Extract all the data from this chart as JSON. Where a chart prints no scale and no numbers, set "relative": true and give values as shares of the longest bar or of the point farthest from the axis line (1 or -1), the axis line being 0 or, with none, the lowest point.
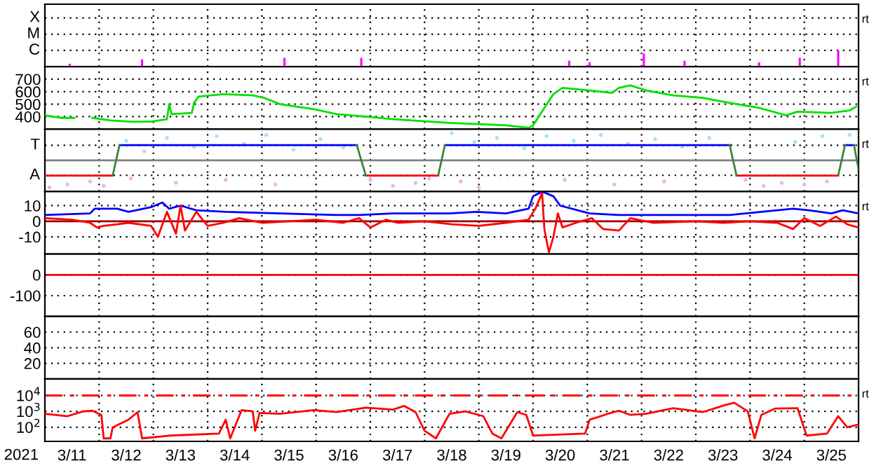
{
  "chart_data": [
    {
      "type": "bar",
      "relative": true,
      "xlim": [
        "2021-03-11",
        "2021-03-26"
      ],
      "grid": true,
      "tick_labels": false,
      "annotations": [
        "rt",
        "X",
        "M",
        "C"
      ],
      "xticks": [
        {
          "value": "2021-03-12",
          "label": null
        },
        {
          "value": "2021-03-13",
          "label": null
        },
        {
          "value": "2021-03-14",
          "label": null
        },
        {
          "value": "2021-03-15",
          "label": null
        },
        {
          "value": "2021-03-16",
          "label": null
        },
        {
          "value": "2021-03-17",
          "label": null
        },
        {
          "value": "2021-03-18",
          "label": null
        },
        {
          "value": "2021-03-19",
          "label": null
        },
        {
          "value": "2021-03-20",
          "label": null
        },
        {
          "value": "2021-03-21",
          "label": null
        },
        {
          "value": "2021-03-22",
          "label": null
        },
        {
          "value": "2021-03-23",
          "label": null
        },
        {
          "value": "2021-03-24",
          "label": null
        },
        {
          "value": "2021-03-25",
          "label": null
        }
      ],
      "series": [
        {
          "color": "#ff00ff",
          "x": [
            "2021-03-11T11:00",
            "2021-03-12T19:00",
            "2021-03-15T10:00",
            "2021-03-16T20:00",
            "2021-03-20T16:00",
            "2021-03-21T01:00",
            "2021-03-22T01:00",
            "2021-03-22T19:00",
            "2021-03-24T04:00",
            "2021-03-24T22:00",
            "2021-03-25T15:00"
          ],
          "values": [
            0.18,
            0.45,
            0.55,
            0.55,
            0.36,
            0.27,
            0.8,
            0.36,
            0.27,
            0.55,
            1
          ]
        }
      ]
    },
    {
      "type": "line",
      "xlim": [
        "2021-03-11",
        "2021-03-26"
      ],
      "ylim": [
        300,
        800
      ],
      "yticks": [
        400,
        500,
        600,
        700
      ],
      "grid": true,
      "tick_labels": "y",
      "annotations": [
        "rt"
      ],
      "xticks": [
        {
          "value": "2021-03-12",
          "label": null
        },
        {
          "value": "2021-03-13",
          "label": null
        },
        {
          "value": "2021-03-14",
          "label": null
        },
        {
          "value": "2021-03-15",
          "label": null
        },
        {
          "value": "2021-03-16",
          "label": null
        },
        {
          "value": "2021-03-17",
          "label": null
        },
        {
          "value": "2021-03-18",
          "label": null
        },
        {
          "value": "2021-03-19",
          "label": null
        },
        {
          "value": "2021-03-20",
          "label": null
        },
        {
          "value": "2021-03-21",
          "label": null
        },
        {
          "value": "2021-03-22",
          "label": null
        },
        {
          "value": "2021-03-23",
          "label": null
        },
        {
          "value": "2021-03-24",
          "label": null
        },
        {
          "value": "2021-03-25",
          "label": null
        }
      ],
      "series": [
        {
          "color": "#00e000",
          "x": [
            "2021-03-11T00:00",
            "2021-03-11T07:00",
            "2021-03-11T13:00",
            "2021-03-11T17:00",
            "2021-03-11T21:00",
            "2021-03-12T05:00",
            "2021-03-12T14:00",
            "2021-03-12T23:00",
            "2021-03-13T06:00",
            "2021-03-13T07:00",
            "2021-03-13T08:00",
            "2021-03-13T17:00",
            "2021-03-13T18:00",
            "2021-03-13T20:00",
            "2021-03-14T07:00",
            "2021-03-14T20:00",
            "2021-03-15T01:00",
            "2021-03-15T08:00",
            "2021-03-15T23:00",
            "2021-03-16T09:00",
            "2021-03-16T22:00",
            "2021-03-17T10:00",
            "2021-03-18T11:00",
            "2021-03-19T12:00",
            "2021-03-19T22:00",
            "2021-03-20T00:00",
            "2021-03-20T05:00",
            "2021-03-20T09:00",
            "2021-03-20T13:00",
            "2021-03-21T01:00",
            "2021-03-21T11:00",
            "2021-03-21T14:00",
            "2021-03-21T19:00",
            "2021-03-22T02:00",
            "2021-03-22T14:00",
            "2021-03-23T03:00",
            "2021-03-23T15:00",
            "2021-03-24T04:00",
            "2021-03-24T16:00",
            "2021-03-24T21:00",
            "2021-03-25T12:00",
            "2021-03-25T20:00",
            "2021-03-25T23:00"
          ],
          "values": [
            410,
            390,
            390,
            null,
            390,
            370,
            360,
            360,
            380,
            500,
            420,
            430,
            510,
            560,
            580,
            570,
            550,
            500,
            460,
            420,
            400,
            380,
            350,
            330,
            310,
            330,
            470,
            580,
            630,
            610,
            590,
            630,
            650,
            610,
            570,
            550,
            510,
            470,
            410,
            440,
            430,
            450,
            480
          ]
        }
      ]
    },
    {
      "type": "line",
      "relative": true,
      "xlim": [
        "2021-03-11",
        "2021-03-26"
      ],
      "grid": true,
      "tick_labels": false,
      "annotations": [
        "rt",
        "T",
        "A"
      ],
      "ref_lines": [
        {
          "axis": "y",
          "value": 0,
          "color": "#808080"
        }
      ],
      "xticks": [
        {
          "value": "2021-03-12",
          "label": null
        },
        {
          "value": "2021-03-13",
          "label": null
        },
        {
          "value": "2021-03-14",
          "label": null
        },
        {
          "value": "2021-03-15",
          "label": null
        },
        {
          "value": "2021-03-16",
          "label": null
        },
        {
          "value": "2021-03-17",
          "label": null
        },
        {
          "value": "2021-03-18",
          "label": null
        },
        {
          "value": "2021-03-19",
          "label": null
        },
        {
          "value": "2021-03-20",
          "label": null
        },
        {
          "value": "2021-03-21",
          "label": null
        },
        {
          "value": "2021-03-22",
          "label": null
        },
        {
          "value": "2021-03-23",
          "label": null
        },
        {
          "value": "2021-03-24",
          "label": null
        },
        {
          "value": "2021-03-25",
          "label": null
        }
      ],
      "series": [
        {
          "type": "scatter",
          "color": "#a8e0f8",
          "x": [
            "2021-03-12T12:00",
            "2021-03-12T20:00",
            "2021-03-13T06:00",
            "2021-03-13T18:00",
            "2021-03-14T04:00",
            "2021-03-14T16:00",
            "2021-03-15T02:00",
            "2021-03-15T14:00",
            "2021-03-16T02:00",
            "2021-03-16T12:00",
            "2021-03-18T12:00",
            "2021-03-18T22:00",
            "2021-03-19T08:00",
            "2021-03-19T20:00",
            "2021-03-20T06:00",
            "2021-03-20T18:00",
            "2021-03-21T06:00",
            "2021-03-21T18:00",
            "2021-03-22T06:00",
            "2021-03-22T18:00",
            "2021-03-23T06:00",
            "2021-03-24T20:00",
            "2021-03-25T08:00",
            "2021-03-25T20:00"
          ],
          "values": [
            0.72,
            0.33,
            0.83,
            0.5,
            0.89,
            0.61,
            0.94,
            0.39,
            0.78,
            0.47,
            1,
            0.67,
            0.83,
            0.44,
            0.89,
            0.72,
            0.94,
            0.61,
            0.78,
            0.5,
            0.83,
            0.67,
            0.89,
            0.94
          ]
        },
        {
          "type": "scatter",
          "color": "#f0b0f0",
          "x": [
            "2021-03-11T02:00",
            "2021-03-11T10:00",
            "2021-03-11T20:00",
            "2021-03-12T02:00",
            "2021-03-12T14:00",
            "2021-03-13T10:00",
            "2021-03-14T08:00",
            "2021-03-15T06:00",
            "2021-03-17T00:00",
            "2021-03-17T10:00",
            "2021-03-17T20:00",
            "2021-03-18T02:00",
            "2021-03-18T16:00",
            "2021-03-19T00:00",
            "2021-03-20T14:00",
            "2021-03-21T12:00",
            "2021-03-22T10:00",
            "2021-03-23T22:00",
            "2021-03-24T06:00",
            "2021-03-24T14:00",
            "2021-03-25T00:00",
            "2021-03-25T10:00"
          ],
          "values": [
            -1,
            -0.89,
            -0.78,
            -0.94,
            -0.67,
            -0.83,
            -0.72,
            -0.89,
            -0.72,
            -0.94,
            -0.83,
            -0.67,
            -0.78,
            -1,
            -0.72,
            -0.89,
            -0.78,
            -0.72,
            -0.94,
            -0.83,
            -0.89,
            -0.78
          ]
        },
        {
          "color": "#ff0000",
          "x": [
            "2021-03-11T00:00",
            "2021-03-12T06:00",
            "2021-03-12T07:00",
            "2021-03-16T22:00",
            "2021-03-18T06:00",
            "2021-03-18T07:00",
            "2021-03-23T18:00",
            "2021-03-25T15:00"
          ],
          "values": [
            -0.56,
            -0.56,
            null,
            -0.56,
            -0.56,
            null,
            -0.56,
            -0.56
          ]
        },
        {
          "color": "#0000ff",
          "x": [
            "2021-03-12T09:00",
            "2021-03-16T18:00",
            "2021-03-16T19:00",
            "2021-03-18T09:00",
            "2021-03-23T15:00",
            "2021-03-23T16:00",
            "2021-03-25T18:00",
            "2021-03-25T22:00"
          ],
          "values": [
            0.56,
            0.56,
            null,
            0.56,
            0.56,
            null,
            0.56,
            0.56
          ]
        },
        {
          "color": "#408040",
          "x": [
            "2021-03-12T06:00",
            "2021-03-12T09:00",
            "2021-03-12T10:00",
            "2021-03-16T18:00",
            "2021-03-16T22:00",
            "2021-03-16T23:00",
            "2021-03-18T06:00",
            "2021-03-18T09:00",
            "2021-03-18T10:00",
            "2021-03-23T15:00",
            "2021-03-23T18:00",
            "2021-03-23T19:00",
            "2021-03-25T15:00",
            "2021-03-25T18:00",
            "2021-03-25T19:00",
            "2021-03-25T22:00",
            "2021-03-26T00:00"
          ],
          "values": [
            -0.56,
            0.56,
            null,
            0.56,
            -0.56,
            null,
            -0.56,
            0.56,
            null,
            0.56,
            -0.56,
            null,
            -0.56,
            0.56,
            null,
            0.56,
            -0.33
          ]
        }
      ]
    },
    {
      "type": "line",
      "xlim": [
        "2021-03-11",
        "2021-03-26"
      ],
      "ylim": [
        -21,
        19
      ],
      "yticks": [
        -10,
        0,
        10
      ],
      "grid": true,
      "tick_labels": "y",
      "annotations": [
        "rt"
      ],
      "ref_lines": [
        {
          "axis": "y",
          "value": 0,
          "color": "#a00000"
        }
      ],
      "xticks": [
        {
          "value": "2021-03-12",
          "label": null
        },
        {
          "value": "2021-03-13",
          "label": null
        },
        {
          "value": "2021-03-14",
          "label": null
        },
        {
          "value": "2021-03-15",
          "label": null
        },
        {
          "value": "2021-03-16",
          "label": null
        },
        {
          "value": "2021-03-17",
          "label": null
        },
        {
          "value": "2021-03-18",
          "label": null
        },
        {
          "value": "2021-03-19",
          "label": null
        },
        {
          "value": "2021-03-20",
          "label": null
        },
        {
          "value": "2021-03-21",
          "label": null
        },
        {
          "value": "2021-03-22",
          "label": null
        },
        {
          "value": "2021-03-23",
          "label": null
        },
        {
          "value": "2021-03-24",
          "label": null
        },
        {
          "value": "2021-03-25",
          "label": null
        }
      ],
      "series": [
        {
          "color": "#0000ff",
          "x": [
            "2021-03-11T00:00",
            "2021-03-11T20:00",
            "2021-03-11T22:00",
            "2021-03-12T08:00",
            "2021-03-12T13:00",
            "2021-03-12T23:00",
            "2021-03-13T04:00",
            "2021-03-13T07:00",
            "2021-03-13T12:00",
            "2021-03-13T19:00",
            "2021-03-14T08:00",
            "2021-03-15T08:00",
            "2021-03-16T09:00",
            "2021-03-16T19:00",
            "2021-03-17T10:00",
            "2021-03-18T11:00",
            "2021-03-18T23:00",
            "2021-03-19T12:00",
            "2021-03-19T22:00",
            "2021-03-20T00:00",
            "2021-03-20T04:00",
            "2021-03-20T09:00",
            "2021-03-20T12:00",
            "2021-03-21T01:00",
            "2021-03-21T14:00",
            "2021-03-22T14:00",
            "2021-03-23T15:00",
            "2021-03-24T19:00",
            "2021-03-25T02:00",
            "2021-03-25T12:00",
            "2021-03-25T17:00",
            "2021-03-26T00:00"
          ],
          "values": [
            4,
            5,
            8,
            8,
            6,
            9,
            12,
            8,
            10,
            7,
            6,
            5,
            4,
            4,
            5,
            5,
            6,
            5,
            8,
            16,
            19,
            16,
            10,
            5,
            4,
            4,
            4,
            8,
            7,
            5,
            7,
            5
          ]
        },
        {
          "color": "#ff0000",
          "x": [
            "2021-03-11T00:00",
            "2021-03-11T12:00",
            "2021-03-11T20:00",
            "2021-03-11T23:00",
            "2021-03-12T02:00",
            "2021-03-12T08:00",
            "2021-03-12T13:00",
            "2021-03-12T23:00",
            "2021-03-13T02:00",
            "2021-03-13T06:00",
            "2021-03-13T10:00",
            "2021-03-13T12:00",
            "2021-03-13T14:00",
            "2021-03-13T19:00",
            "2021-03-14T00:00",
            "2021-03-14T07:00",
            "2021-03-14T14:00",
            "2021-03-15T00:00",
            "2021-03-15T12:00",
            "2021-03-16T00:00",
            "2021-03-16T12:00",
            "2021-03-16T19:00",
            "2021-03-17T00:00",
            "2021-03-17T07:00",
            "2021-03-17T12:00",
            "2021-03-18T00:00",
            "2021-03-18T12:00",
            "2021-03-19T00:00",
            "2021-03-19T12:00",
            "2021-03-19T22:00",
            "2021-03-20T01:00",
            "2021-03-20T04:00",
            "2021-03-20T05:00",
            "2021-03-20T07:00",
            "2021-03-20T09:00",
            "2021-03-20T11:00",
            "2021-03-20T13:00",
            "2021-03-20T19:00",
            "2021-03-21T02:00",
            "2021-03-21T07:00",
            "2021-03-21T14:00",
            "2021-03-21T19:00",
            "2021-03-22T05:00",
            "2021-03-23T00:00",
            "2021-03-23T12:00",
            "2021-03-24T00:00",
            "2021-03-24T12:00",
            "2021-03-24T19:00",
            "2021-03-25T00:00",
            "2021-03-25T07:00",
            "2021-03-25T14:00",
            "2021-03-25T19:00",
            "2021-03-26T00:00"
          ],
          "values": [
            2,
            1,
            -1,
            -4,
            -3,
            -2,
            -1,
            -3,
            -10,
            6,
            -8,
            10,
            -6,
            6,
            -3,
            -1,
            2,
            -1,
            0,
            1,
            -1,
            2,
            -4,
            1,
            -1,
            0,
            -2,
            -3,
            -1,
            1,
            8,
            18,
            -5,
            -20,
            -10,
            5,
            -4,
            -1,
            2,
            -5,
            -6,
            2,
            -1,
            0,
            -1,
            0,
            -1,
            -5,
            2,
            -3,
            3,
            -2,
            -4
          ]
        }
      ]
    },
    {
      "type": "line",
      "xlim": [
        "2021-03-11",
        "2021-03-26"
      ],
      "ylim": [
        -200,
        100
      ],
      "yticks": [
        -100,
        0
      ],
      "grid": true,
      "tick_labels": "y",
      "ref_lines": [
        {
          "axis": "y",
          "value": 0,
          "color": "#ff0000"
        }
      ],
      "xticks": [
        {
          "value": "2021-03-12",
          "label": null
        },
        {
          "value": "2021-03-13",
          "label": null
        },
        {
          "value": "2021-03-14",
          "label": null
        },
        {
          "value": "2021-03-15",
          "label": null
        },
        {
          "value": "2021-03-16",
          "label": null
        },
        {
          "value": "2021-03-17",
          "label": null
        },
        {
          "value": "2021-03-18",
          "label": null
        },
        {
          "value": "2021-03-19",
          "label": null
        },
        {
          "value": "2021-03-20",
          "label": null
        },
        {
          "value": "2021-03-21",
          "label": null
        },
        {
          "value": "2021-03-22",
          "label": null
        },
        {
          "value": "2021-03-23",
          "label": null
        },
        {
          "value": "2021-03-24",
          "label": null
        },
        {
          "value": "2021-03-25",
          "label": null
        }
      ]
    },
    {
      "type": "line",
      "xlim": [
        "2021-03-11",
        "2021-03-26"
      ],
      "ylim": [
        0,
        80
      ],
      "yticks": [
        20,
        40,
        60
      ],
      "grid": true,
      "tick_labels": "y",
      "xticks": [
        {
          "value": "2021-03-12",
          "label": null
        },
        {
          "value": "2021-03-13",
          "label": null
        },
        {
          "value": "2021-03-14",
          "label": null
        },
        {
          "value": "2021-03-15",
          "label": null
        },
        {
          "value": "2021-03-16",
          "label": null
        },
        {
          "value": "2021-03-17",
          "label": null
        },
        {
          "value": "2021-03-18",
          "label": null
        },
        {
          "value": "2021-03-19",
          "label": null
        },
        {
          "value": "2021-03-20",
          "label": null
        },
        {
          "value": "2021-03-21",
          "label": null
        },
        {
          "value": "2021-03-22",
          "label": null
        },
        {
          "value": "2021-03-23",
          "label": null
        },
        {
          "value": "2021-03-24",
          "label": null
        },
        {
          "value": "2021-03-25",
          "label": null
        }
      ]
    },
    {
      "type": "line",
      "xlim": [
        "2021-03-11",
        "2021-03-26"
      ],
      "log": true,
      "ylim": [
        13,
        110000
      ],
      "yticks": [
        {
          "value": 100,
          "label": "10$^{2}$"
        },
        {
          "value": 1000,
          "label": "10$^{3}$"
        },
        {
          "value": 10000,
          "label": "10$^{4}$"
        }
      ],
      "grid": true,
      "annotations": [
        "rt"
      ],
      "ref_lines": [
        {
          "axis": "y",
          "value": 10000,
          "color": "#ff0000",
          "line_style": "dashed"
        }
      ],
      "xlabel": "2021",
      "xticks": [
        {
          "value": "2021-03-11T12:00",
          "label": "3/11"
        },
        {
          "value": "2021-03-12T12:00",
          "label": "3/12"
        },
        {
          "value": "2021-03-13T12:00",
          "label": "3/13"
        },
        {
          "value": "2021-03-14T12:00",
          "label": "3/14"
        },
        {
          "value": "2021-03-15T12:00",
          "label": "3/15"
        },
        {
          "value": "2021-03-16T12:00",
          "label": "3/16"
        },
        {
          "value": "2021-03-17T12:00",
          "label": "3/17"
        },
        {
          "value": "2021-03-18T12:00",
          "label": "3/18"
        },
        {
          "value": "2021-03-19T12:00",
          "label": "3/19"
        },
        {
          "value": "2021-03-20T12:00",
          "label": "3/20"
        },
        {
          "value": "2021-03-21T12:00",
          "label": "3/21"
        },
        {
          "value": "2021-03-22T12:00",
          "label": "3/22"
        },
        {
          "value": "2021-03-23T12:00",
          "label": "3/23"
        },
        {
          "value": "2021-03-24T12:00",
          "label": "3/24"
        },
        {
          "value": "2021-03-25T12:00",
          "label": "3/25"
        },
        {
          "value": "2021-03-12",
          "label": null
        },
        {
          "value": "2021-03-13",
          "label": null
        },
        {
          "value": "2021-03-14",
          "label": null
        },
        {
          "value": "2021-03-15",
          "label": null
        },
        {
          "value": "2021-03-16",
          "label": null
        },
        {
          "value": "2021-03-17",
          "label": null
        },
        {
          "value": "2021-03-18",
          "label": null
        },
        {
          "value": "2021-03-19",
          "label": null
        },
        {
          "value": "2021-03-20",
          "label": null
        },
        {
          "value": "2021-03-21",
          "label": null
        },
        {
          "value": "2021-03-22",
          "label": null
        },
        {
          "value": "2021-03-23",
          "label": null
        },
        {
          "value": "2021-03-24",
          "label": null
        },
        {
          "value": "2021-03-25",
          "label": null
        }
      ],
      "series": [
        {
          "color": "#ff0000",
          "x": [
            "2021-03-11T00:00",
            "2021-03-11T10:00",
            "2021-03-11T17:00",
            "2021-03-11T21:00",
            "2021-03-12T01:00",
            "2021-03-12T02:00",
            "2021-03-12T05:00",
            "2021-03-12T06:00",
            "2021-03-12T13:00",
            "2021-03-12T17:00",
            "2021-03-12T19:00",
            "2021-03-13T07:00",
            "2021-03-14T05:00",
            "2021-03-14T08:00",
            "2021-03-14T10:00",
            "2021-03-14T15:00",
            "2021-03-14T20:00",
            "2021-03-14T21:00",
            "2021-03-14T23:00",
            "2021-03-15T08:00",
            "2021-03-15T23:00",
            "2021-03-16T09:00",
            "2021-03-16T22:00",
            "2021-03-17T10:00",
            "2021-03-17T15:00",
            "2021-03-17T20:00",
            "2021-03-18T00:00",
            "2021-03-18T05:00",
            "2021-03-18T11:00",
            "2021-03-18T18:00",
            "2021-03-19T02:00",
            "2021-03-19T06:00",
            "2021-03-19T10:00",
            "2021-03-19T17:00",
            "2021-03-19T21:00",
            "2021-03-20T00:00",
            "2021-03-20T23:00",
            "2021-03-21T01:00",
            "2021-03-21T09:00",
            "2021-03-21T14:00",
            "2021-03-21T19:00",
            "2021-03-22T02:00",
            "2021-03-22T14:00",
            "2021-03-23T03:00",
            "2021-03-23T13:00",
            "2021-03-23T17:00",
            "2021-03-23T23:00",
            "2021-03-24T02:00",
            "2021-03-24T05:00",
            "2021-03-24T11:00",
            "2021-03-24T21:00",
            "2021-03-25T01:00",
            "2021-03-25T10:00",
            "2021-03-25T15:00",
            "2021-03-25T19:00",
            "2021-03-26T00:00"
          ],
          "values": [
            700,
            500,
            1000,
            1100,
            600,
            20,
            20,
            100,
            300,
            900,
            20,
            30,
            40,
            300,
            20,
            1200,
            1000,
            60,
            800,
            700,
            1200,
            900,
            1700,
            1300,
            2200,
            900,
            60,
            20,
            700,
            1000,
            500,
            40,
            20,
            900,
            600,
            30,
            40,
            300,
            700,
            1100,
            600,
            700,
            1600,
            900,
            2500,
            3500,
            1000,
            20,
            600,
            1500,
            1600,
            30,
            40,
            500,
            100,
            150
          ]
        }
      ]
    }
  ]
}
